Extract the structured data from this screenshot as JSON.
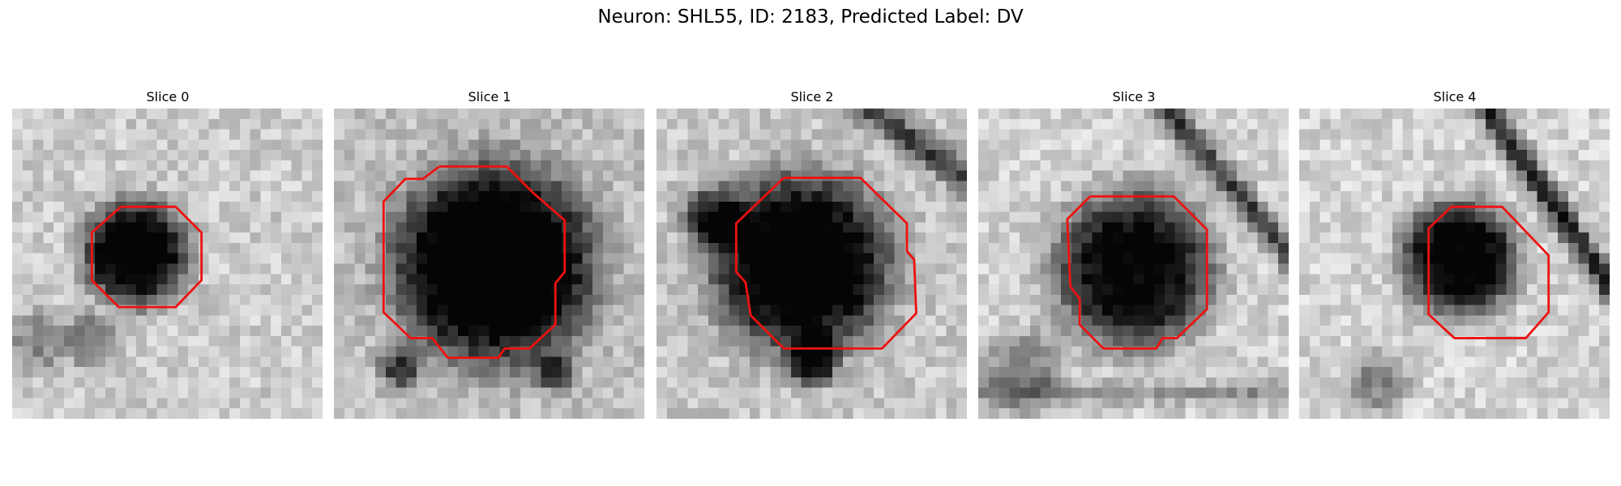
{
  "figure": {
    "title": "Neuron: SHL55, ID: 2183, Predicted Label: DV",
    "contour_color": "#ee1111"
  },
  "panels": [
    {
      "title": "Slice 0"
    },
    {
      "title": "Slice 1"
    },
    {
      "title": "Slice 2"
    },
    {
      "title": "Slice 3"
    },
    {
      "title": "Slice 4"
    }
  ]
}
